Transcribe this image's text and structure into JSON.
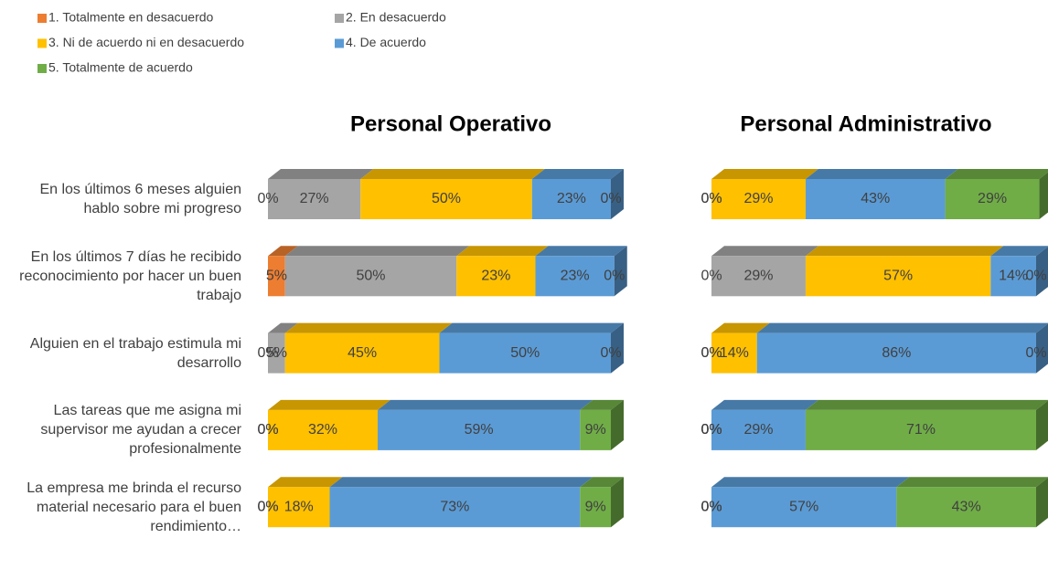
{
  "chart_data": [
    {
      "type": "bar",
      "title": "Personal Operativo",
      "categories": [
        "En los últimos 6 meses alguien hablo sobre mi progreso",
        "En los últimos 7 días he recibido reconocimiento por hacer un buen trabajo",
        "Alguien en el trabajo estimula mi desarrollo",
        "Las tareas que me asigna mi supervisor me ayudan a crecer profesionalmente",
        "La empresa me brinda el recurso material necesario para el buen rendimiento…"
      ],
      "xlim": [
        0,
        100
      ],
      "series": [
        {
          "name": "1. Totalmente en desacuerdo",
          "color": "#ed7d31",
          "values": [
            0,
            5,
            0,
            0,
            0
          ],
          "value_labels": [
            "0%",
            "5%",
            "0%",
            "0%",
            "0%"
          ]
        },
        {
          "name": "2. En desacuerdo",
          "color": "#a5a5a5",
          "values": [
            27,
            50,
            5,
            0,
            0
          ],
          "value_labels": [
            "27%",
            "50%",
            "5%",
            "0%",
            "0%"
          ]
        },
        {
          "name": "3. Ni de acuerdo ni en desacuerdo",
          "color": "#ffc000",
          "values": [
            50,
            23,
            45,
            32,
            18
          ],
          "value_labels": [
            "50%",
            "23%",
            "45%",
            "32%",
            "18%"
          ]
        },
        {
          "name": "4. De acuerdo",
          "color": "#5b9bd5",
          "values": [
            23,
            23,
            50,
            59,
            73
          ],
          "value_labels": [
            "23%",
            "23%",
            "50%",
            "59%",
            "73%"
          ]
        },
        {
          "name": "5. Totalmente de acuerdo",
          "color": "#70ad47",
          "values": [
            0,
            0,
            0,
            9,
            9
          ],
          "value_labels": [
            "0%",
            "0%",
            "0%",
            "9%",
            "9%"
          ]
        }
      ]
    },
    {
      "type": "bar",
      "title": "Personal Administrativo",
      "xlim": [
        0,
        100
      ],
      "series": [
        {
          "color": "#ed7d31",
          "values": [
            0,
            0,
            0,
            0,
            0
          ],
          "value_labels": [
            "0%",
            "0%",
            "0%",
            "0%",
            "0%"
          ]
        },
        {
          "color": "#a5a5a5",
          "values": [
            0,
            29,
            0,
            0,
            0
          ],
          "value_labels": [
            "0%",
            "29%",
            "0%",
            "0%",
            "0%"
          ]
        },
        {
          "color": "#ffc000",
          "values": [
            29,
            57,
            14,
            0,
            0
          ],
          "value_labels": [
            "29%",
            "57%",
            "14%",
            "0%",
            "0%"
          ]
        },
        {
          "color": "#5b9bd5",
          "values": [
            43,
            14,
            86,
            29,
            57
          ],
          "value_labels": [
            "43%",
            "14%",
            "86%",
            "29%",
            "57%"
          ]
        },
        {
          "color": "#70ad47",
          "values": [
            29,
            0,
            0,
            71,
            43
          ],
          "value_labels": [
            "29%",
            "0%",
            "0%",
            "71%",
            "43%"
          ]
        }
      ]
    }
  ]
}
